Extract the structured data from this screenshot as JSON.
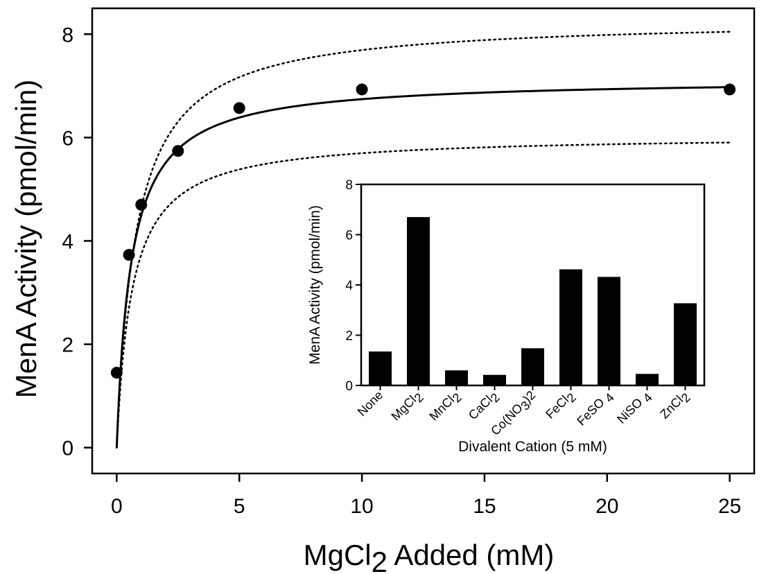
{
  "chart_data": [
    {
      "type": "scatter",
      "xlabel": "MgCl",
      "xlabel_sub": "2",
      "xlabel_rest": " Added (mM)",
      "ylabel": "MenA Activity (pmol/min)",
      "xlim": [
        -1,
        26
      ],
      "ylim": [
        -0.5,
        8.5
      ],
      "xticks": [
        0,
        5,
        10,
        15,
        20,
        25
      ],
      "yticks": [
        0,
        2,
        4,
        6,
        8
      ],
      "grid": false,
      "points": {
        "x": [
          0,
          0.5,
          1,
          2.5,
          5,
          10,
          25
        ],
        "y": [
          1.45,
          3.73,
          4.7,
          5.74,
          6.57,
          6.93,
          6.93
        ]
      },
      "fit": {
        "model": "hyperbolic",
        "vmax": 7.14,
        "km": 0.59
      },
      "bands": {
        "upper_vmax": 8.3,
        "upper_km": 0.79,
        "lower_vmax": 6.05,
        "lower_km": 0.62
      }
    },
    {
      "type": "bar",
      "xlabel": "Divalent Cation (5 mM)",
      "ylabel": "MenA Activity (pmol/min)",
      "ylim": [
        0,
        8
      ],
      "yticks": [
        0,
        2,
        4,
        6,
        8
      ],
      "categories": [
        {
          "base": "None",
          "sub": "",
          "rest": ""
        },
        {
          "base": "MgCl",
          "sub": "2",
          "rest": ""
        },
        {
          "base": "MnCl",
          "sub": "2",
          "rest": ""
        },
        {
          "base": "CaCl",
          "sub": "2",
          "rest": ""
        },
        {
          "base": "Co(NO",
          "sub": "3",
          "rest": ")2"
        },
        {
          "base": "FeCl",
          "sub": "2",
          "rest": ""
        },
        {
          "base": "FeSO ",
          "sub": "4",
          "rest": ""
        },
        {
          "base": "NiSO ",
          "sub": "4",
          "rest": ""
        },
        {
          "base": "ZnCl",
          "sub": "2",
          "rest": ""
        }
      ],
      "values": [
        1.35,
        6.7,
        0.6,
        0.42,
        1.48,
        4.62,
        4.32,
        0.46,
        3.27
      ]
    }
  ]
}
